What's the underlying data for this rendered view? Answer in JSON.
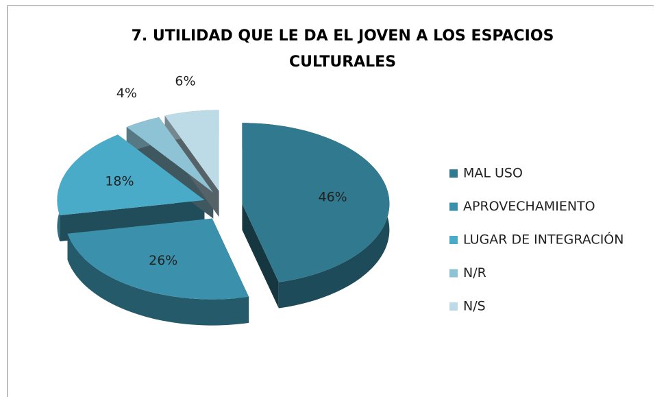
{
  "chart_data": {
    "type": "pie",
    "title": "7. UTILIDAD QUE LE DA EL JOVEN A LOS ESPACIOS CULTURALES",
    "categories": [
      "MAL USO",
      "APROVECHAMIENTO",
      "LUGAR DE INTEGRACIÓN",
      "N/R",
      "N/S"
    ],
    "values": [
      46,
      26,
      18,
      4,
      6
    ],
    "value_labels": [
      "46%",
      "26%",
      "18%",
      "4%",
      "6%"
    ],
    "colors": [
      "#31798f",
      "#3b91ab",
      "#4aabc9",
      "#8dc3d5",
      "#bddbe6"
    ],
    "legend": "right"
  }
}
